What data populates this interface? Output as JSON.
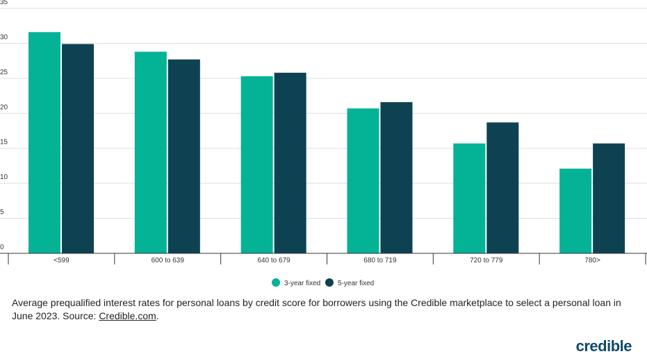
{
  "chart_data": {
    "type": "bar",
    "categories": [
      "<599",
      "600 to 639",
      "640 to 679",
      "680 to 719",
      "720 to 779",
      "780>"
    ],
    "series": [
      {
        "name": "3-year fixed",
        "color": "#04b296",
        "values": [
          31.6,
          28.8,
          25.3,
          20.7,
          15.7,
          12.1
        ]
      },
      {
        "name": "5-year fixed",
        "color": "#0e4252",
        "values": [
          29.9,
          27.7,
          25.8,
          21.6,
          18.7,
          15.7
        ]
      }
    ],
    "ylim": [
      0,
      35
    ],
    "yticks": [
      0,
      5,
      10,
      15,
      20,
      25,
      30,
      35
    ],
    "grid": true,
    "legend": "bottom"
  },
  "caption": {
    "text": "Average prequalified interest rates for personal loans by credit score for borrowers using the Credible marketplace to select a personal loan in June 2023. Source:",
    "link": "Credible.com",
    "end": "."
  },
  "logo": "credible"
}
